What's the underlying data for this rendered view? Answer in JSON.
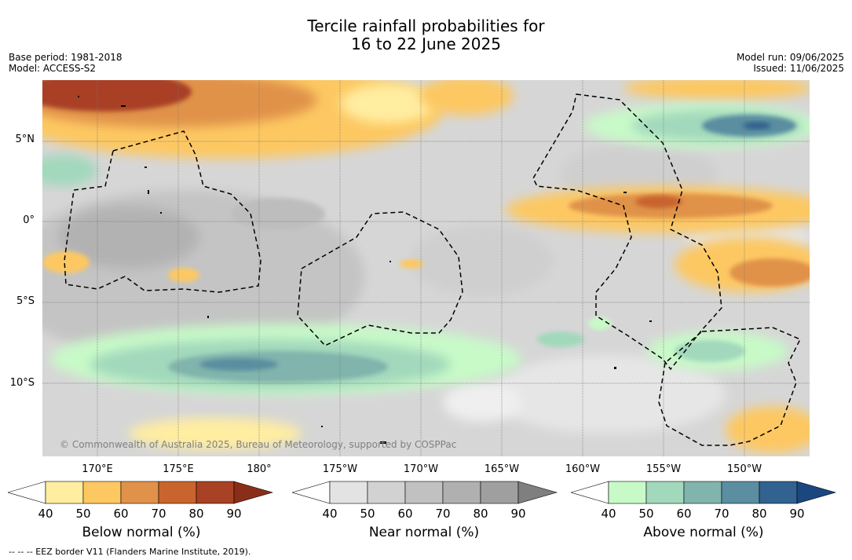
{
  "title": {
    "line1": "Tercile rainfall probabilities for",
    "line2": "16 to 22 June 2025"
  },
  "meta": {
    "base_period": "Base period: 1981-2018",
    "model": "Model: ACCESS-S2",
    "model_run": "Model run: 09/06/2025",
    "issued": "Issued: 11/06/2025"
  },
  "map": {
    "latitude_labels": [
      "5°N",
      "0°",
      "5°S",
      "10°S"
    ],
    "longitude_labels": [
      "170°E",
      "175°E",
      "180°",
      "175°W",
      "170°W",
      "165°W",
      "160°W",
      "155°W",
      "150°W"
    ],
    "copyright": "© Commonwealth of Australia 2025, Bureau of Meteorology, supported by COSPPac",
    "eez_boundary_style": "dashed"
  },
  "colorbars": [
    {
      "title": "Below normal (%)",
      "ticks": [
        "40",
        "50",
        "60",
        "70",
        "80",
        "90"
      ],
      "colors": [
        "#ffffff",
        "#ffeda0",
        "#fdc862",
        "#e0924a",
        "#c9642e",
        "#a94125",
        "#8a2e1a"
      ]
    },
    {
      "title": "Near normal (%)",
      "ticks": [
        "40",
        "50",
        "60",
        "70",
        "80",
        "90"
      ],
      "colors": [
        "#ffffff",
        "#e3e3e3",
        "#d2d2d2",
        "#c1c1c1",
        "#b0b0b0",
        "#9f9f9f",
        "#7f7f7f"
      ]
    },
    {
      "title": "Above normal (%)",
      "ticks": [
        "40",
        "50",
        "60",
        "70",
        "80",
        "90"
      ],
      "colors": [
        "#ffffff",
        "#c8fac8",
        "#a2d8bc",
        "#80b4ac",
        "#5a8ea0",
        "#32628f",
        "#1a4780"
      ]
    }
  ],
  "footer": "--  --  -- EEZ border V11 (Flanders Marine Institute, 2019)."
}
